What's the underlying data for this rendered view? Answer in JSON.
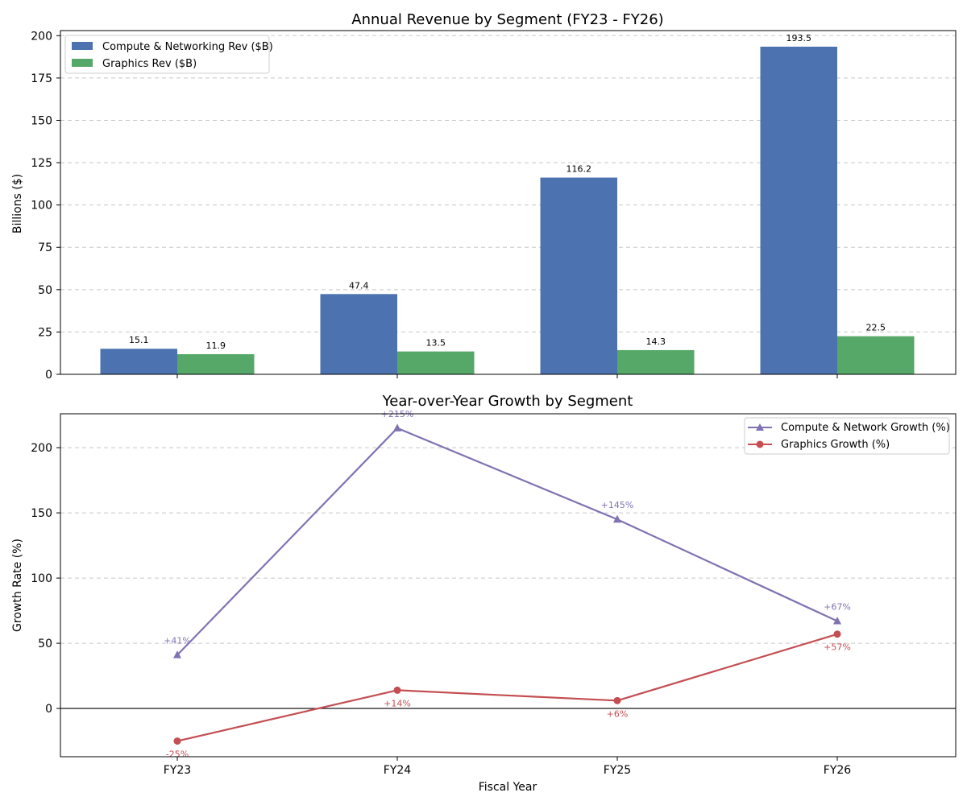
{
  "colors": {
    "compute": "#4c72b0",
    "graphics": "#55a868",
    "compute_growth": "#8172b2",
    "graphics_growth": "#c44e52",
    "grid": "#c8c8c8",
    "axis": "#000000"
  },
  "chart_data": [
    {
      "type": "bar",
      "title": "Annual Revenue by Segment (FY23 - FY26)",
      "xlabel": "",
      "ylabel": "Billions ($)",
      "categories": [
        "FY23",
        "FY24",
        "FY25",
        "FY26"
      ],
      "ylim": [
        0,
        203
      ],
      "yticks": [
        0,
        25,
        50,
        75,
        100,
        125,
        150,
        175,
        200
      ],
      "ytick_labels": [
        "0",
        "25",
        "50",
        "75",
        "100",
        "125",
        "150",
        "175",
        "200"
      ],
      "grid": true,
      "legend_position": "top-left",
      "series": [
        {
          "name": "Compute & Networking Rev ($B)",
          "values": [
            15.1,
            47.4,
            116.2,
            193.5
          ],
          "labels": [
            "15.1",
            "47.4",
            "116.2",
            "193.5"
          ]
        },
        {
          "name": "Graphics Rev ($B)",
          "values": [
            11.9,
            13.5,
            14.3,
            22.5
          ],
          "labels": [
            "11.9",
            "13.5",
            "14.3",
            "22.5"
          ]
        }
      ]
    },
    {
      "type": "line",
      "title": "Year-over-Year Growth by Segment",
      "xlabel": "Fiscal Year",
      "ylabel": "Growth Rate (%)",
      "categories": [
        "FY23",
        "FY24",
        "FY25",
        "FY26"
      ],
      "ylim": [
        -37,
        226
      ],
      "yticks": [
        0,
        50,
        100,
        150,
        200
      ],
      "ytick_labels": [
        "0",
        "50",
        "100",
        "150",
        "200"
      ],
      "grid": true,
      "zero_line": true,
      "legend_position": "top-right",
      "series": [
        {
          "name": "Compute & Network Growth (%)",
          "marker": "triangle",
          "values": [
            41,
            215,
            145,
            67
          ],
          "labels": [
            "+41%",
            "+215%",
            "+145%",
            "+67%"
          ]
        },
        {
          "name": "Graphics Growth (%)",
          "marker": "circle",
          "values": [
            -25,
            14,
            6,
            57
          ],
          "labels": [
            "-25%",
            "+14%",
            "+6%",
            "+57%"
          ]
        }
      ]
    }
  ]
}
